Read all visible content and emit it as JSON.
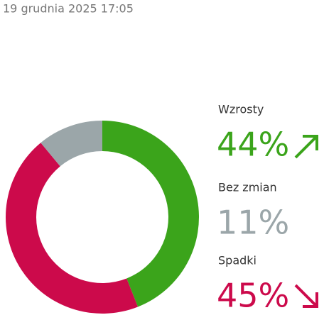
{
  "header": {
    "timestamp": "19 grudnia 2025 17:05"
  },
  "chart_data": {
    "type": "donut",
    "categories": [
      "Wzrosty",
      "Bez zmian",
      "Spadki"
    ],
    "values": [
      44,
      11,
      45
    ],
    "value_labels": [
      "44%",
      "11%",
      "45%"
    ],
    "colors": [
      "#3ba41b",
      "#9ba6a9",
      "#cc0a4b"
    ]
  }
}
